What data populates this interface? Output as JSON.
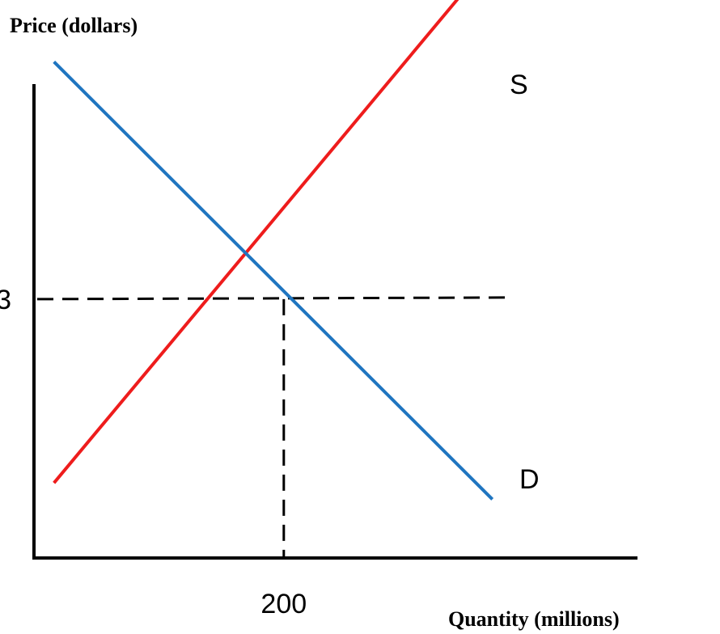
{
  "chart_data": {
    "type": "line",
    "title": "",
    "ylabel": "Price (dollars)",
    "xlabel": "Quantity (millions)",
    "x_ticks": [
      {
        "value": 200,
        "label": "200"
      }
    ],
    "y_ticks": [
      {
        "value": 3,
        "label": "3"
      }
    ],
    "equilibrium": {
      "x": 200,
      "y": 3
    },
    "series": [
      {
        "name": "S",
        "color": "#ee1c1c",
        "points": [
          [
            16,
            0.87
          ],
          [
            367,
            6.96
          ]
        ]
      },
      {
        "name": "D",
        "color": "#1f75c0",
        "points": [
          [
            16,
            5.75
          ],
          [
            367,
            0.68
          ]
        ]
      }
    ],
    "grid": false,
    "legend": "none"
  }
}
